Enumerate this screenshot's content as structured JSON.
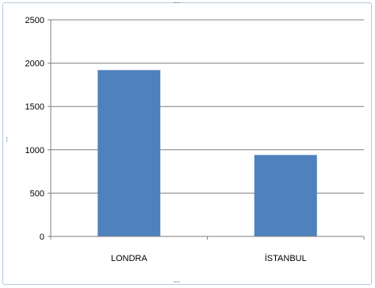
{
  "chart_data": {
    "type": "bar",
    "categories": [
      "LONDRA",
      "İSTANBUL"
    ],
    "values": [
      1920,
      940
    ],
    "title": "",
    "xlabel": "",
    "ylabel": "",
    "ylim": [
      0,
      2500
    ],
    "yticks": [
      0,
      500,
      1000,
      1500,
      2000,
      2500
    ],
    "ytick_labels": [
      "0",
      "500",
      "1000",
      "1500",
      "2000",
      "2500"
    ],
    "grid": true,
    "legend": "none",
    "bar_color": "#4f81bd",
    "grid_color": "#7f7f7f",
    "axis_color": "#7f7f7f"
  },
  "frame": {
    "border_color": "#b9c9da",
    "handle_icon": "resize-handle-dots-icon"
  }
}
